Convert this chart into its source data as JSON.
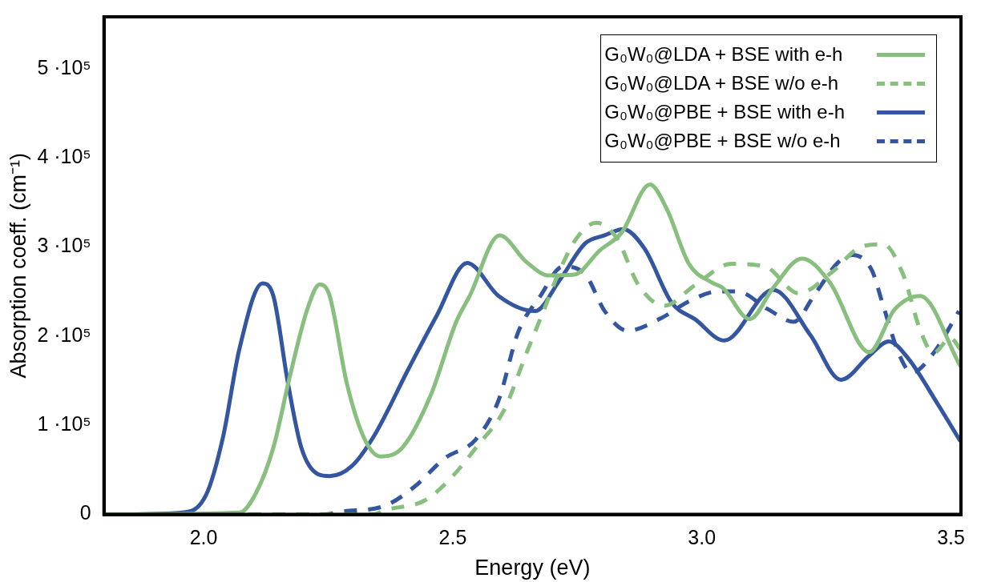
{
  "chart_data": {
    "type": "line",
    "xlabel": "Energy (eV)",
    "ylabel": "Absorption coeff. (cm⁻¹)",
    "xlim": [
      1.8,
      3.52
    ],
    "xticks": [
      {
        "value": 2.0,
        "label": "2.0"
      },
      {
        "value": 2.5,
        "label": "2.5"
      },
      {
        "value": 3.0,
        "label": "3.0"
      },
      {
        "value": 3.5,
        "label": "3.5"
      }
    ],
    "ylim": [
      0,
      558000
    ],
    "yticks": [
      {
        "value": 0,
        "label": "0"
      },
      {
        "value": 100000,
        "label": "1 ·10⁵"
      },
      {
        "value": 200000,
        "label": "2 ·10⁵"
      },
      {
        "value": 300000,
        "label": "3 ·10⁵"
      },
      {
        "value": 400000,
        "label": "4 ·10⁵"
      },
      {
        "value": 500000,
        "label": "5 ·10⁵"
      }
    ],
    "legend": "top right",
    "series": [
      {
        "name": "G₀W₀@LDA + BSE with e-h",
        "color": "#88bf7f",
        "line_style": "solid",
        "x": [
          1.8,
          2.072,
          2.106,
          2.14,
          2.174,
          2.208,
          2.233,
          2.253,
          2.287,
          2.321,
          2.355,
          2.399,
          2.456,
          2.507,
          2.534,
          2.594,
          2.648,
          2.693,
          2.744,
          2.795,
          2.839,
          2.896,
          2.93,
          2.974,
          3.02,
          3.042,
          3.096,
          3.143,
          3.201,
          3.257,
          3.336,
          3.387,
          3.438,
          3.519
        ],
        "values": [
          0,
          2000,
          25000,
          75000,
          157000,
          230000,
          258000,
          245000,
          148000,
          87000,
          65000,
          75000,
          134000,
          216000,
          245000,
          313000,
          283000,
          268000,
          269000,
          296000,
          316000,
          370000,
          342000,
          281000,
          260000,
          254000,
          219000,
          254000,
          287000,
          260000,
          182000,
          230000,
          245000,
          166000
        ]
      },
      {
        "name": "G₀W₀@LDA + BSE w/o e-h",
        "color": "#88bf7f",
        "line_style": "dashed",
        "x": [
          1.8,
          2.34,
          2.365,
          2.445,
          2.5,
          2.551,
          2.602,
          2.648,
          2.682,
          2.715,
          2.749,
          2.788,
          2.829,
          2.873,
          2.924,
          2.986,
          3.059,
          3.127,
          3.194,
          3.262,
          3.319,
          3.364,
          3.404,
          3.438,
          3.465,
          3.499,
          3.519
        ],
        "values": [
          0,
          0,
          5000,
          16000,
          43000,
          78000,
          116000,
          181000,
          228000,
          274000,
          310000,
          327000,
          310000,
          257000,
          234000,
          257000,
          281000,
          278000,
          248000,
          272000,
          300000,
          303000,
          269000,
          207000,
          181000,
          198000,
          185000
        ]
      },
      {
        "name": "G₀W₀@PBE + BSE with e-h",
        "color": "#34559f",
        "line_style": "solid",
        "x": [
          1.8,
          1.954,
          2.005,
          2.039,
          2.072,
          2.118,
          2.14,
          2.169,
          2.196,
          2.23,
          2.253,
          2.297,
          2.343,
          2.411,
          2.467,
          2.529,
          2.592,
          2.665,
          2.715,
          2.766,
          2.805,
          2.842,
          2.885,
          2.94,
          2.986,
          3.045,
          3.143,
          3.218,
          3.279,
          3.336,
          3.375,
          3.414,
          3.472,
          3.519
        ],
        "values": [
          0,
          2000,
          22000,
          87000,
          186000,
          259000,
          245000,
          148000,
          75000,
          45000,
          43000,
          54000,
          89000,
          163000,
          222000,
          282000,
          245000,
          228000,
          263000,
          304000,
          313000,
          320000,
          298000,
          237000,
          219000,
          195000,
          252000,
          201000,
          151000,
          178000,
          194000,
          175000,
          125000,
          82000
        ]
      },
      {
        "name": "G₀W₀@PBE + BSE w/o e-h",
        "color": "#34559f",
        "line_style": "dashed",
        "x": [
          1.8,
          2.242,
          2.275,
          2.365,
          2.423,
          2.484,
          2.546,
          2.592,
          2.631,
          2.676,
          2.721,
          2.766,
          2.805,
          2.851,
          2.918,
          2.974,
          3.032,
          3.071,
          3.133,
          3.184,
          3.228,
          3.274,
          3.303,
          3.341,
          3.364,
          3.397,
          3.421,
          3.465,
          3.516
        ],
        "values": [
          0,
          0,
          3000,
          10000,
          31000,
          63000,
          84000,
          128000,
          204000,
          245000,
          278000,
          269000,
          228000,
          206000,
          220000,
          239000,
          250000,
          250000,
          230000,
          216000,
          248000,
          283000,
          291000,
          274000,
          234000,
          178000,
          159000,
          181000,
          228000
        ]
      }
    ]
  }
}
